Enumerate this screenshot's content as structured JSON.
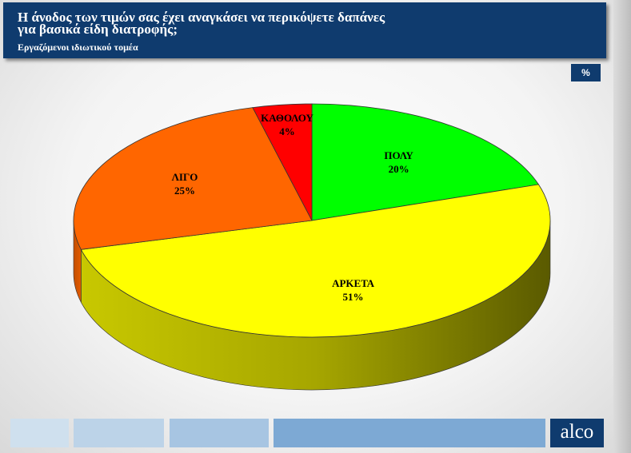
{
  "header": {
    "title": "Η άνοδος των τιμών σας  έχει αναγκάσει να περικόψετε δαπάνες\nγια  βασικά είδη διατροφής;",
    "subtitle": "Εργαζόμενοι ιδιωτικού τομέα"
  },
  "unit_label": "%",
  "logo_text": "alco",
  "chart_data": {
    "type": "pie",
    "title": "Η άνοδος των τιμών σας  έχει αναγκάσει να περικόψετε δαπάνες για  βασικά είδη διατροφής;",
    "subtitle": "Εργαζόμενοι ιδιωτικού τομέα",
    "unit": "%",
    "slices": [
      {
        "label": "ΠΟΛΥ",
        "value": 20,
        "display": "20%",
        "color": "#00ff00"
      },
      {
        "label": "ΑΡΚΕΤΑ",
        "value": 51,
        "display": "51%",
        "color": "#ffff00"
      },
      {
        "label": "ΛΙΓΟ",
        "value": 25,
        "display": "25%",
        "color": "#ff6600"
      },
      {
        "label": "ΚΑΘΟΛΟΥ",
        "value": 4,
        "display": "4%",
        "color": "#ff0000"
      }
    ]
  }
}
